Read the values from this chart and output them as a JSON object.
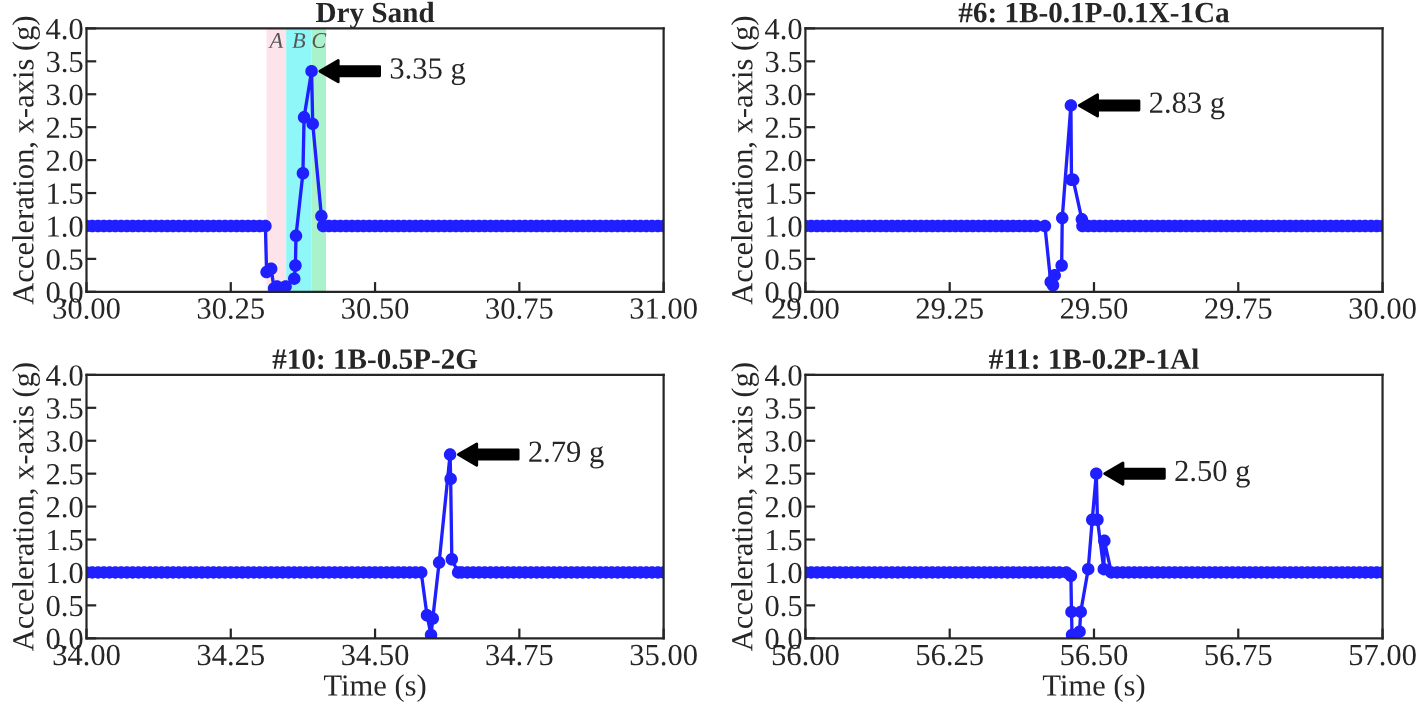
{
  "chart_data": [
    {
      "type": "line",
      "title": "Dry Sand",
      "ylabel": "Acceleration, x-axis (g)",
      "xlim": [
        30.0,
        31.0
      ],
      "ylim": [
        0,
        4
      ],
      "marker": "circle",
      "line_style": "solid",
      "grid": false,
      "legend": false,
      "xticks": [
        {
          "value": 30.0,
          "label": "30.00"
        },
        {
          "value": 30.25,
          "label": "30.25"
        },
        {
          "value": 30.5,
          "label": "30.50"
        },
        {
          "value": 30.75,
          "label": "30.75"
        },
        {
          "value": 31.0,
          "label": "31.00"
        }
      ],
      "yticks": [
        {
          "value": 0,
          "label": "0.0"
        },
        0.5,
        {
          "value": 1,
          "label": "1.0"
        },
        1.5,
        {
          "value": 2,
          "label": "2.0"
        },
        2.5,
        {
          "value": 3,
          "label": "3.0"
        },
        3.5,
        {
          "value": 4,
          "label": "4.0"
        }
      ],
      "bands": [
        {
          "axis": "x",
          "from": 30.312,
          "to": 30.346,
          "label": "A",
          "color": "#fde3ea"
        },
        {
          "axis": "x",
          "from": 30.346,
          "to": 30.39,
          "label": "B",
          "color": "#8ff7f7"
        },
        {
          "axis": "x",
          "from": 30.39,
          "to": 30.415,
          "label": "C",
          "color": "#a9f2cc"
        }
      ],
      "annotations": [
        {
          "text": "3.35 g",
          "x": 30.39,
          "y": 3.35
        }
      ],
      "series": [
        {
          "color": "#1f1fff",
          "x": [
            30.0,
            30.01,
            30.02,
            30.03,
            30.04,
            30.05,
            30.06,
            30.07,
            30.08,
            30.09,
            30.1,
            30.11,
            30.12,
            30.13,
            30.14,
            30.15,
            30.16,
            30.17,
            30.18,
            30.19,
            30.2,
            30.21,
            30.22,
            30.23,
            30.24,
            30.25,
            30.26,
            30.27,
            30.28,
            30.29,
            30.3,
            30.31,
            30.312,
            30.32,
            30.325,
            30.33,
            30.34,
            30.345,
            30.36,
            30.362,
            30.363,
            30.375,
            30.377,
            30.39,
            30.392,
            30.407,
            30.41,
            30.42,
            30.43,
            30.44,
            30.45,
            30.46,
            30.47,
            30.48,
            30.49,
            30.5,
            30.51,
            30.52,
            30.53,
            30.54,
            30.55,
            30.56,
            30.57,
            30.58,
            30.59,
            30.6,
            30.61,
            30.62,
            30.63,
            30.64,
            30.65,
            30.66,
            30.67,
            30.68,
            30.69,
            30.7,
            30.71,
            30.72,
            30.73,
            30.74,
            30.75,
            30.76,
            30.77,
            30.78,
            30.79,
            30.8,
            30.81,
            30.82,
            30.83,
            30.84,
            30.85,
            30.86,
            30.87,
            30.88,
            30.89,
            30.9,
            30.91,
            30.92,
            30.93,
            30.94,
            30.95,
            30.96,
            30.97,
            30.98,
            30.99,
            31.0
          ],
          "values": [
            1,
            1,
            1,
            1,
            1,
            1,
            1,
            1,
            1,
            1,
            1,
            1,
            1,
            1,
            1,
            1,
            1,
            1,
            1,
            1,
            1,
            1,
            1,
            1,
            1,
            1,
            1,
            1,
            1,
            1,
            1,
            1,
            0.3,
            0.35,
            0.05,
            0.08,
            0.05,
            0.08,
            0.2,
            0.4,
            0.85,
            1.8,
            2.65,
            3.35,
            2.55,
            1.15,
            1.0,
            1,
            1,
            1,
            1,
            1,
            1,
            1,
            1,
            1,
            1,
            1,
            1,
            1,
            1,
            1,
            1,
            1,
            1,
            1,
            1,
            1,
            1,
            1,
            1,
            1,
            1,
            1,
            1,
            1,
            1,
            1,
            1,
            1,
            1,
            1,
            1,
            1,
            1,
            1,
            1,
            1,
            1,
            1,
            1,
            1,
            1,
            1,
            1,
            1,
            1,
            1,
            1,
            1,
            1,
            1,
            1,
            1,
            1,
            1
          ]
        }
      ]
    },
    {
      "type": "line",
      "title": "#6: 1B-0.1P-0.1X-1Ca",
      "ylabel": "Acceleration, x-axis (g)",
      "xlim": [
        29.0,
        30.0
      ],
      "ylim": [
        0,
        4
      ],
      "marker": "circle",
      "line_style": "solid",
      "grid": false,
      "legend": false,
      "xticks": [
        {
          "value": 29.0,
          "label": "29.00"
        },
        {
          "value": 29.25,
          "label": "29.25"
        },
        {
          "value": 29.5,
          "label": "29.50"
        },
        {
          "value": 29.75,
          "label": "29.75"
        },
        {
          "value": 30.0,
          "label": "30.00"
        }
      ],
      "yticks": [
        {
          "value": 0,
          "label": "0.0"
        },
        0.5,
        {
          "value": 1,
          "label": "1.0"
        },
        1.5,
        {
          "value": 2,
          "label": "2.0"
        },
        2.5,
        {
          "value": 3,
          "label": "3.0"
        },
        3.5,
        {
          "value": 4,
          "label": "4.0"
        }
      ],
      "annotations": [
        {
          "text": "2.83 g",
          "x": 29.46,
          "y": 2.83
        }
      ],
      "series": [
        {
          "color": "#1f1fff",
          "x": [
            29.0,
            29.01,
            29.02,
            29.03,
            29.04,
            29.05,
            29.06,
            29.07,
            29.08,
            29.09,
            29.1,
            29.11,
            29.12,
            29.13,
            29.14,
            29.15,
            29.16,
            29.17,
            29.18,
            29.19,
            29.2,
            29.21,
            29.22,
            29.23,
            29.24,
            29.25,
            29.26,
            29.27,
            29.28,
            29.29,
            29.3,
            29.31,
            29.32,
            29.33,
            29.34,
            29.35,
            29.36,
            29.37,
            29.38,
            29.39,
            29.4,
            29.415,
            29.425,
            29.429,
            29.432,
            29.444,
            29.445,
            29.46,
            29.461,
            29.464,
            29.479,
            29.48,
            29.49,
            29.5,
            29.51,
            29.52,
            29.53,
            29.54,
            29.55,
            29.56,
            29.57,
            29.58,
            29.59,
            29.6,
            29.61,
            29.62,
            29.63,
            29.64,
            29.65,
            29.66,
            29.67,
            29.68,
            29.69,
            29.7,
            29.71,
            29.72,
            29.73,
            29.74,
            29.75,
            29.76,
            29.77,
            29.78,
            29.79,
            29.8,
            29.81,
            29.82,
            29.83,
            29.84,
            29.85,
            29.86,
            29.87,
            29.88,
            29.89,
            29.9,
            29.91,
            29.92,
            29.93,
            29.94,
            29.95,
            29.96,
            29.97,
            29.98,
            29.99,
            30.0
          ],
          "values": [
            1,
            1,
            1,
            1,
            1,
            1,
            1,
            1,
            1,
            1,
            1,
            1,
            1,
            1,
            1,
            1,
            1,
            1,
            1,
            1,
            1,
            1,
            1,
            1,
            1,
            1,
            1,
            1,
            1,
            1,
            1,
            1,
            1,
            1,
            1,
            1,
            1,
            1,
            1,
            1,
            1,
            1.0,
            0.15,
            0.1,
            0.25,
            0.4,
            1.12,
            2.83,
            1.7,
            1.7,
            1.1,
            1.0,
            1,
            1,
            1,
            1,
            1,
            1,
            1,
            1,
            1,
            1,
            1,
            1,
            1,
            1,
            1,
            1,
            1,
            1,
            1,
            1,
            1,
            1,
            1,
            1,
            1,
            1,
            1,
            1,
            1,
            1,
            1,
            1,
            1,
            1,
            1,
            1,
            1,
            1,
            1,
            1,
            1,
            1,
            1,
            1,
            1,
            1,
            1,
            1,
            1,
            1,
            1,
            1
          ]
        }
      ]
    },
    {
      "type": "line",
      "title": "#10: 1B-0.5P-2G",
      "xlabel": "Time (s)",
      "ylabel": "Acceleration, x-axis (g)",
      "xlim": [
        34.0,
        35.0
      ],
      "ylim": [
        0,
        4
      ],
      "marker": "circle",
      "line_style": "solid",
      "grid": false,
      "legend": false,
      "xticks": [
        {
          "value": 34.0,
          "label": "34.00"
        },
        {
          "value": 34.25,
          "label": "34.25"
        },
        {
          "value": 34.5,
          "label": "34.50"
        },
        {
          "value": 34.75,
          "label": "34.75"
        },
        {
          "value": 35.0,
          "label": "35.00"
        }
      ],
      "yticks": [
        {
          "value": 0,
          "label": "0.0"
        },
        0.5,
        {
          "value": 1,
          "label": "1.0"
        },
        1.5,
        {
          "value": 2,
          "label": "2.0"
        },
        2.5,
        {
          "value": 3,
          "label": "3.0"
        },
        3.5,
        {
          "value": 4,
          "label": "4.0"
        }
      ],
      "annotations": [
        {
          "text": "2.79 g",
          "x": 34.63,
          "y": 2.79
        }
      ],
      "series": [
        {
          "color": "#1f1fff",
          "x": [
            34.0,
            34.01,
            34.02,
            34.03,
            34.04,
            34.05,
            34.06,
            34.07,
            34.08,
            34.09,
            34.1,
            34.11,
            34.12,
            34.13,
            34.14,
            34.15,
            34.16,
            34.17,
            34.18,
            34.19,
            34.2,
            34.21,
            34.22,
            34.23,
            34.24,
            34.25,
            34.26,
            34.27,
            34.28,
            34.29,
            34.3,
            34.31,
            34.32,
            34.33,
            34.34,
            34.35,
            34.36,
            34.37,
            34.38,
            34.39,
            34.4,
            34.41,
            34.42,
            34.43,
            34.44,
            34.45,
            34.46,
            34.47,
            34.48,
            34.49,
            34.5,
            34.51,
            34.52,
            34.53,
            34.54,
            34.55,
            34.56,
            34.57,
            34.58,
            34.59,
            34.597,
            34.6,
            34.611,
            34.63,
            34.631,
            34.633,
            34.644,
            34.65,
            34.66,
            34.67,
            34.68,
            34.69,
            34.7,
            34.71,
            34.72,
            34.73,
            34.74,
            34.75,
            34.76,
            34.77,
            34.78,
            34.79,
            34.8,
            34.81,
            34.82,
            34.83,
            34.84,
            34.85,
            34.86,
            34.87,
            34.88,
            34.89,
            34.9,
            34.91,
            34.92,
            34.93,
            34.94,
            34.95,
            34.96,
            34.97,
            34.98,
            34.99,
            35.0
          ],
          "values": [
            1,
            1,
            1,
            1,
            1,
            1,
            1,
            1,
            1,
            1,
            1,
            1,
            1,
            1,
            1,
            1,
            1,
            1,
            1,
            1,
            1,
            1,
            1,
            1,
            1,
            1,
            1,
            1,
            1,
            1,
            1,
            1,
            1,
            1,
            1,
            1,
            1,
            1,
            1,
            1,
            1,
            1,
            1,
            1,
            1,
            1,
            1,
            1,
            1,
            1,
            1,
            1,
            1,
            1,
            1,
            1,
            1,
            1,
            1.0,
            0.35,
            0.05,
            0.3,
            1.15,
            2.79,
            2.42,
            1.2,
            1.0,
            1,
            1,
            1,
            1,
            1,
            1,
            1,
            1,
            1,
            1,
            1,
            1,
            1,
            1,
            1,
            1,
            1,
            1,
            1,
            1,
            1,
            1,
            1,
            1,
            1,
            1,
            1,
            1,
            1,
            1,
            1,
            1,
            1,
            1,
            1,
            1
          ]
        }
      ]
    },
    {
      "type": "line",
      "title": "#11: 1B-0.2P-1Al",
      "xlabel": "Time (s)",
      "ylabel": "Acceleration, x-axis (g)",
      "xlim": [
        56.0,
        57.0
      ],
      "ylim": [
        0,
        4
      ],
      "marker": "circle",
      "line_style": "solid",
      "grid": false,
      "legend": false,
      "xticks": [
        {
          "value": 56.0,
          "label": "56.00"
        },
        {
          "value": 56.25,
          "label": "56.25"
        },
        {
          "value": 56.5,
          "label": "56.50"
        },
        {
          "value": 56.75,
          "label": "56.75"
        },
        {
          "value": 57.0,
          "label": "57.00"
        }
      ],
      "yticks": [
        {
          "value": 0,
          "label": "0.0"
        },
        0.5,
        {
          "value": 1,
          "label": "1.0"
        },
        1.5,
        {
          "value": 2,
          "label": "2.0"
        },
        2.5,
        {
          "value": 3,
          "label": "3.0"
        },
        3.5,
        {
          "value": 4,
          "label": "4.0"
        }
      ],
      "annotations": [
        {
          "text": "2.50 g",
          "x": 56.504,
          "y": 2.5
        }
      ],
      "series": [
        {
          "color": "#1f1fff",
          "x": [
            56.0,
            56.01,
            56.02,
            56.03,
            56.04,
            56.05,
            56.06,
            56.07,
            56.08,
            56.09,
            56.1,
            56.11,
            56.12,
            56.13,
            56.14,
            56.15,
            56.16,
            56.17,
            56.18,
            56.19,
            56.2,
            56.21,
            56.22,
            56.23,
            56.24,
            56.25,
            56.26,
            56.27,
            56.28,
            56.29,
            56.3,
            56.31,
            56.32,
            56.33,
            56.34,
            56.35,
            56.36,
            56.37,
            56.38,
            56.39,
            56.4,
            56.41,
            56.42,
            56.43,
            56.44,
            56.452,
            56.46,
            56.461,
            56.462,
            56.475,
            56.477,
            56.49,
            56.497,
            56.504,
            56.506,
            56.517,
            56.518,
            56.53,
            56.54,
            56.55,
            56.56,
            56.57,
            56.58,
            56.59,
            56.6,
            56.61,
            56.62,
            56.63,
            56.64,
            56.65,
            56.66,
            56.67,
            56.68,
            56.69,
            56.7,
            56.71,
            56.72,
            56.73,
            56.74,
            56.75,
            56.76,
            56.77,
            56.78,
            56.79,
            56.8,
            56.81,
            56.82,
            56.83,
            56.84,
            56.85,
            56.86,
            56.87,
            56.88,
            56.89,
            56.9,
            56.91,
            56.92,
            56.93,
            56.94,
            56.95,
            56.96,
            56.97,
            56.98,
            56.99,
            57.0
          ],
          "values": [
            1,
            1,
            1,
            1,
            1,
            1,
            1,
            1,
            1,
            1,
            1,
            1,
            1,
            1,
            1,
            1,
            1,
            1,
            1,
            1,
            1,
            1,
            1,
            1,
            1,
            1,
            1,
            1,
            1,
            1,
            1,
            1,
            1,
            1,
            1,
            1,
            1,
            1,
            1,
            1,
            1,
            1,
            1,
            1,
            1,
            1.0,
            0.95,
            0.4,
            0.05,
            0.1,
            0.4,
            1.05,
            1.8,
            2.5,
            1.8,
            1.05,
            1.48,
            1.0,
            1,
            1,
            1,
            1,
            1,
            1,
            1,
            1,
            1,
            1,
            1,
            1,
            1,
            1,
            1,
            1,
            1,
            1,
            1,
            1,
            1,
            1,
            1,
            1,
            1,
            1,
            1,
            1,
            1,
            1,
            1,
            1,
            1,
            1,
            1,
            1,
            1,
            1,
            1,
            1,
            1,
            1,
            1,
            1,
            1,
            1,
            1
          ]
        }
      ]
    }
  ]
}
